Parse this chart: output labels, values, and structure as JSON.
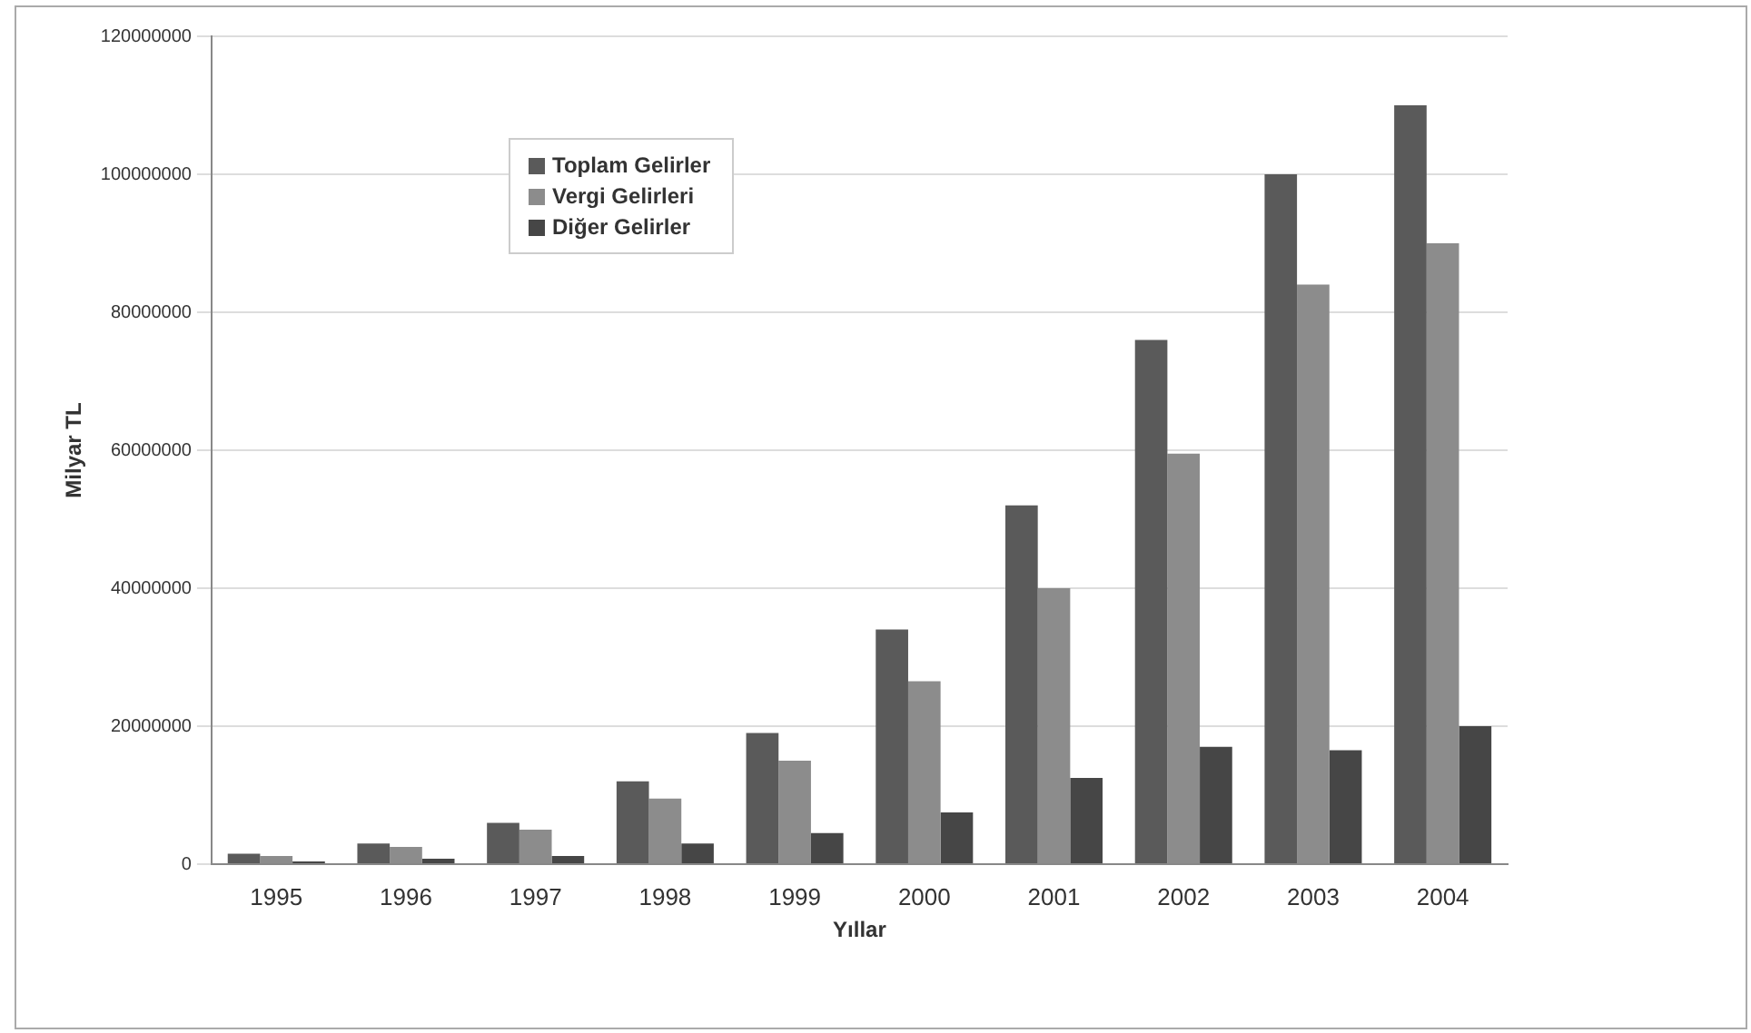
{
  "chart_data": {
    "type": "bar",
    "xlabel": "Yıllar",
    "ylabel": "Milyar TL",
    "categories": [
      "1995",
      "1996",
      "1997",
      "1998",
      "1999",
      "2000",
      "2001",
      "2002",
      "2003",
      "2004"
    ],
    "series": [
      {
        "name": "Toplam Gelirler",
        "color": "#5a5a5a",
        "values": [
          1500000,
          3000000,
          6000000,
          12000000,
          19000000,
          34000000,
          52000000,
          76000000,
          100000000,
          110000000
        ]
      },
      {
        "name": "Vergi Gelirleri",
        "color": "#8c8c8c",
        "values": [
          1200000,
          2500000,
          5000000,
          9500000,
          15000000,
          26500000,
          40000000,
          59500000,
          84000000,
          90000000
        ]
      },
      {
        "name": "Diğer Gelirler",
        "color": "#464646",
        "values": [
          400000,
          800000,
          1200000,
          3000000,
          4500000,
          7500000,
          12500000,
          17000000,
          16500000,
          20000000
        ]
      }
    ],
    "ylim": [
      0,
      120000000
    ],
    "yticks": [
      0,
      20000000,
      40000000,
      60000000,
      80000000,
      100000000,
      120000000
    ],
    "grid": "y",
    "legend": "top left"
  }
}
